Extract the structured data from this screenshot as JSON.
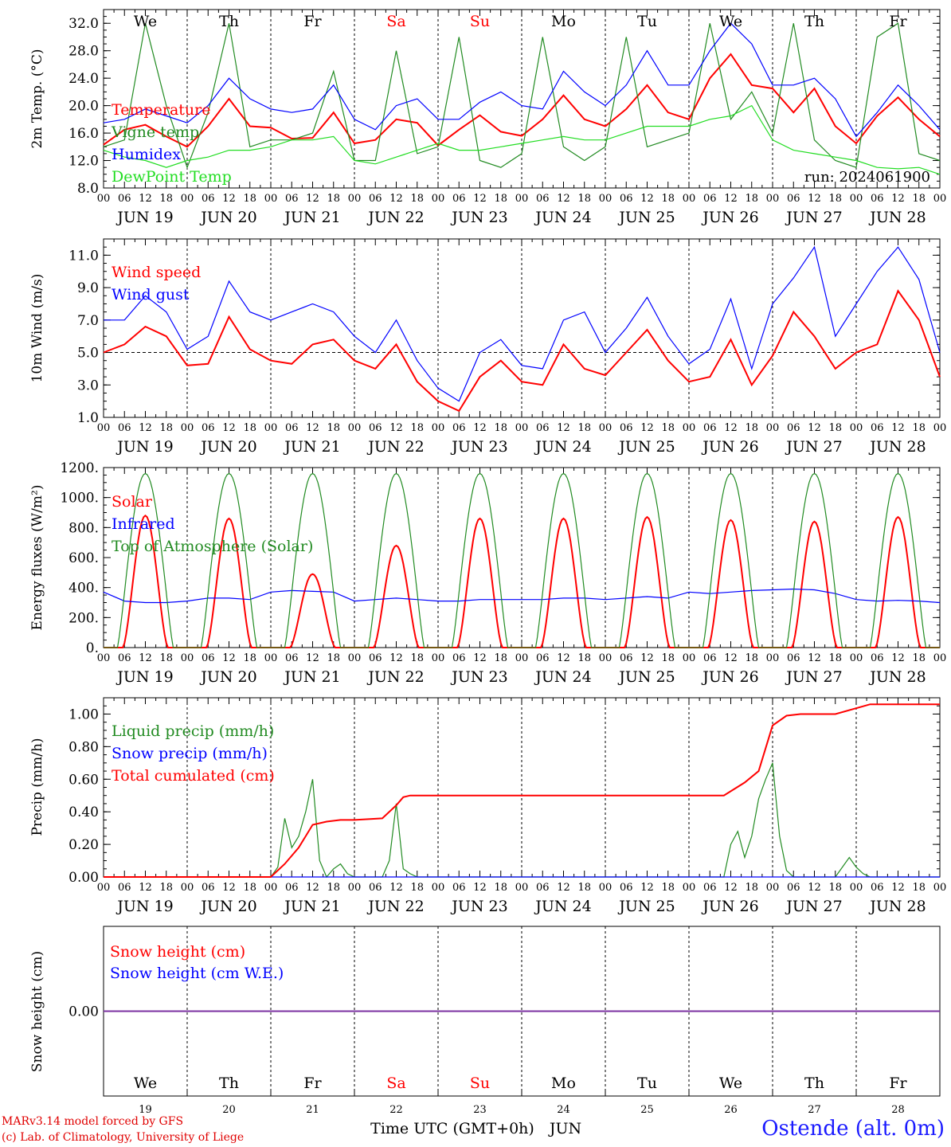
{
  "days": [
    "We",
    "Th",
    "Fr",
    "Sa",
    "Su",
    "Mo",
    "Tu",
    "We",
    "Th",
    "Fr"
  ],
  "weekend_days": [
    3,
    4
  ],
  "day_dates": [
    "19",
    "20",
    "21",
    "22",
    "23",
    "24",
    "25",
    "26",
    "27",
    "28"
  ],
  "date_labels": [
    "JUN 19",
    "JUN 20",
    "JUN 21",
    "JUN 22",
    "JUN 23",
    "JUN 24",
    "JUN 25",
    "JUN 26",
    "JUN 27",
    "JUN 28"
  ],
  "hour_ticks": [
    "00",
    "06",
    "12",
    "18"
  ],
  "x_title": "Time UTC (GMT+0h)",
  "x_month": "JUN",
  "footer": {
    "line1": "MARv3.14 model forced by GFS",
    "line2": "(c) Lab. of Climatology, University of Liege",
    "station": "Ostende (alt. 0m)"
  },
  "colors": {
    "red": "#ff0000",
    "green": "#228b22",
    "blue": "#0000ff",
    "lightgreen": "#22dd22"
  },
  "chart_data": [
    {
      "type": "line",
      "ylabel": "2m Temp. (°C)",
      "ylim": [
        8,
        34
      ],
      "yticks": [
        "8.0",
        "12.0",
        "16.0",
        "20.0",
        "24.0",
        "28.0",
        "32.0"
      ],
      "annotation": "run: 2024061900",
      "x_unit": "hours since JUN 19 00 UTC",
      "series": [
        {
          "name": "Temperature",
          "color": "red",
          "x": [
            0,
            6,
            12,
            18,
            24,
            30,
            36,
            42,
            48,
            54,
            60,
            66,
            72,
            78,
            84,
            90,
            96,
            102,
            108,
            114,
            120,
            126,
            132,
            138,
            144,
            150,
            156,
            162,
            168,
            174,
            180,
            186,
            192,
            198,
            204,
            210,
            216,
            222,
            228,
            234,
            240
          ],
          "y": [
            14.3,
            16.5,
            17.2,
            15.5,
            14,
            17,
            21,
            17,
            16.8,
            15.2,
            15.3,
            19,
            14.5,
            15,
            18,
            17.5,
            14.2,
            16.5,
            18.6,
            16.2,
            15.6,
            18,
            21.5,
            18,
            17,
            19.5,
            23,
            19,
            18,
            24,
            27.5,
            23,
            22.5,
            19,
            22.5,
            17,
            14.5,
            18.5,
            21.2,
            18,
            15.5
          ]
        },
        {
          "name": "Vigne temp",
          "color": "green",
          "x": [
            0,
            6,
            12,
            18,
            24,
            30,
            36,
            42,
            48,
            54,
            60,
            66,
            72,
            78,
            84,
            90,
            96,
            102,
            108,
            114,
            120,
            126,
            132,
            138,
            144,
            150,
            156,
            162,
            168,
            174,
            180,
            186,
            192,
            198,
            204,
            210,
            216,
            222,
            228,
            234,
            240
          ],
          "y": [
            14,
            15,
            32,
            20,
            11,
            19,
            32,
            14,
            15,
            15,
            16,
            25,
            12,
            12,
            28,
            13,
            14,
            30,
            12,
            11,
            13,
            30,
            14,
            12,
            14,
            30,
            14,
            15,
            16,
            32,
            18,
            22,
            16,
            32,
            15,
            12,
            11,
            30,
            32,
            13,
            12
          ]
        },
        {
          "name": "Humidex",
          "color": "blue",
          "x": [
            0,
            6,
            12,
            18,
            24,
            30,
            36,
            42,
            48,
            54,
            60,
            66,
            72,
            78,
            84,
            90,
            96,
            102,
            108,
            114,
            120,
            126,
            132,
            138,
            144,
            150,
            156,
            162,
            168,
            174,
            180,
            186,
            192,
            198,
            204,
            210,
            216,
            222,
            228,
            234,
            240
          ],
          "y": [
            17.5,
            18,
            19.5,
            18.5,
            17.5,
            20,
            24,
            21,
            19.5,
            19,
            19.5,
            23,
            18,
            16.5,
            20,
            21,
            18,
            18,
            20.5,
            22,
            20,
            19.5,
            25,
            22,
            20,
            23,
            28,
            23,
            23,
            28,
            32,
            29,
            23,
            23,
            24,
            21,
            15.5,
            19,
            23,
            20,
            16.5
          ]
        },
        {
          "name": "DewPoint Temp",
          "color": "lightgreen",
          "x": [
            0,
            6,
            12,
            18,
            24,
            30,
            36,
            42,
            48,
            54,
            60,
            66,
            72,
            78,
            84,
            90,
            96,
            102,
            108,
            114,
            120,
            126,
            132,
            138,
            144,
            150,
            156,
            162,
            168,
            174,
            180,
            186,
            192,
            198,
            204,
            210,
            216,
            222,
            228,
            234,
            240
          ],
          "y": [
            13.5,
            12.5,
            12,
            11,
            12,
            12.5,
            13.5,
            13.5,
            14,
            15,
            15,
            15.5,
            12,
            11.5,
            12.5,
            13.5,
            14.5,
            13.5,
            13.5,
            14,
            14.5,
            15,
            15.5,
            15,
            15,
            16,
            17,
            17,
            17,
            18,
            18.5,
            20,
            15,
            13.5,
            13,
            12.5,
            12,
            11,
            10.8,
            11,
            10
          ]
        }
      ]
    },
    {
      "type": "line",
      "ylabel": "10m Wind (m/s)",
      "ylim": [
        1,
        12
      ],
      "yticks": [
        "1.0",
        "3.0",
        "5.0",
        "7.0",
        "9.0",
        "11.0"
      ],
      "reference_line": 5,
      "x_unit": "hours since JUN 19 00 UTC",
      "series": [
        {
          "name": "Wind speed",
          "color": "red",
          "x": [
            0,
            6,
            12,
            18,
            24,
            30,
            36,
            42,
            48,
            54,
            60,
            66,
            72,
            78,
            84,
            90,
            96,
            102,
            108,
            114,
            120,
            126,
            132,
            138,
            144,
            150,
            156,
            162,
            168,
            174,
            180,
            186,
            192,
            198,
            204,
            210,
            216,
            222,
            228,
            234,
            240
          ],
          "y": [
            5,
            5.5,
            6.6,
            6,
            4.2,
            4.3,
            7.2,
            5.2,
            4.5,
            4.3,
            5.5,
            5.8,
            4.5,
            4,
            5.5,
            3.2,
            2,
            1.4,
            3.5,
            4.5,
            3.2,
            3,
            5.5,
            4,
            3.6,
            5,
            6.4,
            4.5,
            3.2,
            3.5,
            5.8,
            3,
            4.8,
            7.5,
            6,
            4,
            5,
            5.5,
            8.8,
            7,
            3.5
          ]
        },
        {
          "name": "Wind gust",
          "color": "blue",
          "x": [
            0,
            6,
            12,
            18,
            24,
            30,
            36,
            42,
            48,
            54,
            60,
            66,
            72,
            78,
            84,
            90,
            96,
            102,
            108,
            114,
            120,
            126,
            132,
            138,
            144,
            150,
            156,
            162,
            168,
            174,
            180,
            186,
            192,
            198,
            204,
            210,
            216,
            222,
            228,
            234,
            240
          ],
          "y": [
            7,
            7,
            8.5,
            7.5,
            5.2,
            6,
            9.4,
            7.5,
            7,
            7.5,
            8,
            7.5,
            6,
            5,
            7,
            4.5,
            2.8,
            2,
            5,
            5.8,
            4.2,
            4,
            7,
            7.5,
            5,
            6.5,
            8.4,
            6,
            4.3,
            5.2,
            8.3,
            4,
            8,
            9.6,
            11.5,
            6,
            8,
            10,
            11.5,
            9.5,
            5
          ]
        }
      ]
    },
    {
      "type": "line",
      "ylabel": "Energy fluxes (W/m²)",
      "ylim": [
        0,
        1200
      ],
      "yticks": [
        "0.",
        "200.",
        "400.",
        "600.",
        "800.",
        "1000.",
        "1200."
      ],
      "x_unit": "hours since JUN 19 00 UTC",
      "solar_daily_peaks": [
        880,
        860,
        490,
        680,
        860,
        860,
        870,
        850,
        840,
        870
      ],
      "series": [
        {
          "name": "Solar",
          "color": "red"
        },
        {
          "name": "Infrared",
          "color": "blue",
          "x": [
            0,
            6,
            12,
            18,
            24,
            30,
            36,
            42,
            48,
            54,
            60,
            66,
            72,
            78,
            84,
            90,
            96,
            102,
            108,
            114,
            120,
            126,
            132,
            138,
            144,
            150,
            156,
            162,
            168,
            174,
            180,
            186,
            192,
            198,
            204,
            210,
            216,
            222,
            228,
            234,
            240
          ],
          "y": [
            370,
            310,
            300,
            300,
            310,
            330,
            330,
            320,
            370,
            380,
            375,
            370,
            310,
            320,
            330,
            320,
            310,
            310,
            320,
            320,
            320,
            320,
            330,
            330,
            320,
            330,
            340,
            330,
            370,
            360,
            370,
            380,
            385,
            390,
            385,
            360,
            320,
            310,
            315,
            310,
            300
          ]
        },
        {
          "name": "Top of Atmosphere (Solar)",
          "color": "green"
        }
      ]
    },
    {
      "type": "line",
      "ylabel": "Precip (mm/h)",
      "ylim": [
        0,
        1.1
      ],
      "yticks": [
        "0.00",
        "0.20",
        "0.40",
        "0.60",
        "0.80",
        "1.00"
      ],
      "x_unit": "hours since JUN 19 00 UTC",
      "series": [
        {
          "name": "Liquid precip (mm/h)",
          "color": "green",
          "x": [
            0,
            48,
            50,
            52,
            54,
            56,
            58,
            60,
            62,
            64,
            66,
            68,
            70,
            72,
            80,
            82,
            84,
            86,
            88,
            90,
            96,
            178,
            180,
            182,
            184,
            186,
            188,
            190,
            192,
            194,
            196,
            198,
            202,
            210,
            214,
            216,
            218,
            220,
            222,
            240
          ],
          "y": [
            0,
            0,
            0.06,
            0.36,
            0.18,
            0.25,
            0.4,
            0.6,
            0.1,
            0,
            0.05,
            0.08,
            0.02,
            0,
            0,
            0.1,
            0.45,
            0.05,
            0.02,
            0,
            0,
            0,
            0.2,
            0.28,
            0.12,
            0.25,
            0.48,
            0.6,
            0.7,
            0.25,
            0.04,
            0,
            0,
            0,
            0.12,
            0.06,
            0.02,
            0,
            0,
            0
          ]
        },
        {
          "name": "Snow precip (mm/h)",
          "color": "blue",
          "x": [
            0,
            240
          ],
          "y": [
            0,
            0
          ]
        },
        {
          "name": "Total cumulated (cm)",
          "color": "red",
          "x": [
            0,
            48,
            52,
            56,
            60,
            64,
            68,
            72,
            80,
            84,
            86,
            88,
            96,
            178,
            184,
            188,
            192,
            196,
            200,
            210,
            220,
            240
          ],
          "y": [
            0,
            0,
            0.08,
            0.18,
            0.32,
            0.34,
            0.35,
            0.35,
            0.36,
            0.44,
            0.49,
            0.5,
            0.5,
            0.5,
            0.58,
            0.65,
            0.93,
            0.99,
            1,
            1,
            1.06,
            1.06
          ]
        }
      ]
    },
    {
      "type": "line",
      "ylabel": "Snow height (cm)",
      "yticks": [
        "0.00"
      ],
      "x_unit": "hours since JUN 19 00 UTC",
      "series": [
        {
          "name": "Snow height (cm)",
          "color": "red",
          "x": [
            0,
            240
          ],
          "y": [
            0,
            0
          ]
        },
        {
          "name": "Snow height (cm W.E.)",
          "color": "blue",
          "x": [
            0,
            240
          ],
          "y": [
            0,
            0
          ]
        }
      ]
    }
  ]
}
